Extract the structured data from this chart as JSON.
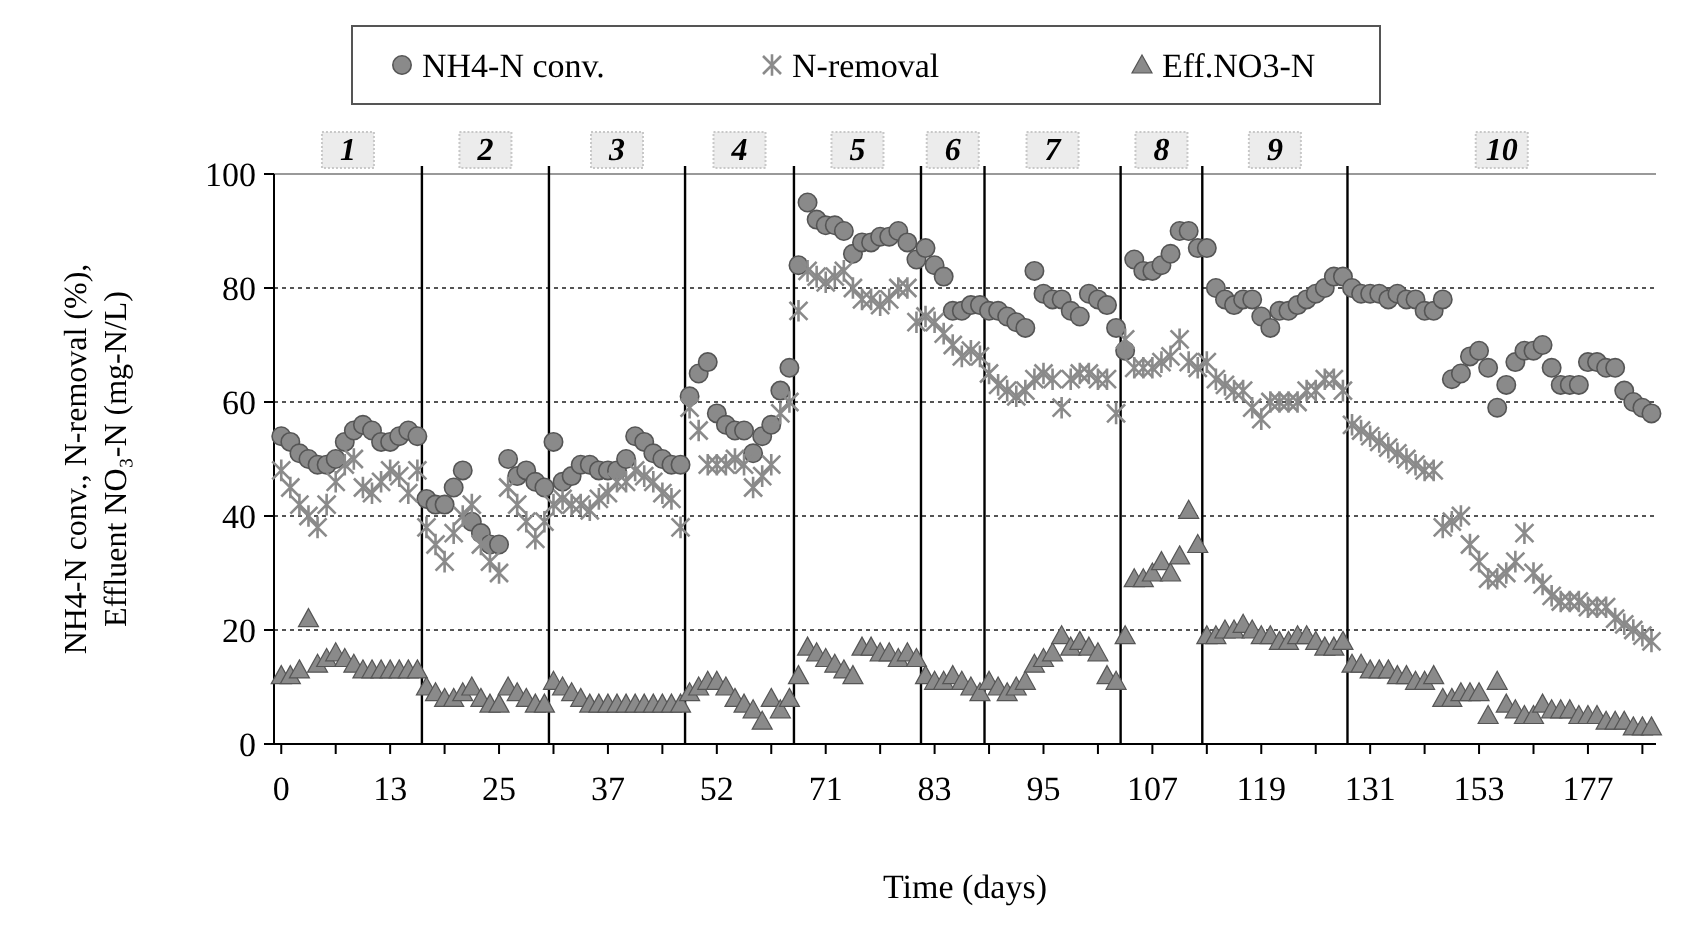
{
  "chart_data": {
    "type": "scatter",
    "xlabel": "Time (days)",
    "ylabel": "NH4-N conv., N-removal (%), Effluent NO₃-N (mg-N/L)",
    "categories": [
      "0",
      null,
      null,
      null,
      null,
      null,
      null,
      null,
      null,
      null,
      null,
      null,
      "13",
      null,
      null,
      null,
      null,
      null,
      null,
      null,
      null,
      null,
      null,
      null,
      "25",
      null,
      null,
      null,
      null,
      null,
      null,
      null,
      null,
      null,
      null,
      null,
      "37",
      null,
      null,
      null,
      null,
      null,
      null,
      null,
      null,
      null,
      null,
      null,
      "52",
      null,
      null,
      null,
      null,
      null,
      null,
      null,
      null,
      null,
      null,
      null,
      "71",
      null,
      null,
      null,
      null,
      null,
      null,
      null,
      null,
      null,
      null,
      null,
      "83",
      null,
      null,
      null,
      null,
      null,
      null,
      null,
      null,
      null,
      null,
      null,
      "95",
      null,
      null,
      null,
      null,
      null,
      null,
      null,
      null,
      null,
      null,
      null,
      "107",
      null,
      null,
      null,
      null,
      null,
      null,
      null,
      null,
      null,
      null,
      null,
      "119",
      null,
      null,
      null,
      null,
      null,
      null,
      null,
      null,
      null,
      null,
      null,
      "131",
      null,
      null,
      null,
      null,
      null,
      null,
      null,
      null,
      null,
      null,
      null,
      "153",
      null,
      null,
      null,
      null,
      null,
      null,
      null,
      null,
      null,
      null,
      null,
      "177",
      null,
      null,
      null,
      null,
      null,
      null,
      null
    ],
    "series": [
      {
        "name": "NH4-N conv.",
        "color": "#8a8a8a",
        "marker": "circle",
        "values": [
          54,
          53,
          51,
          50,
          49,
          49,
          50,
          53,
          55,
          56,
          55,
          53,
          53,
          54,
          55,
          54,
          43,
          42,
          42,
          45,
          48,
          39,
          37,
          35,
          35,
          50,
          47,
          48,
          46,
          45,
          53,
          46,
          47,
          49,
          49,
          48,
          48,
          48,
          50,
          54,
          53,
          51,
          50,
          49,
          49,
          61,
          65,
          67,
          58,
          56,
          55,
          55,
          51,
          54,
          56,
          62,
          66,
          84,
          95,
          92,
          91,
          91,
          90,
          86,
          88,
          88,
          89,
          89,
          90,
          88,
          85,
          87,
          84,
          82,
          76,
          76,
          77,
          77,
          76,
          76,
          75,
          74,
          73,
          83,
          79,
          78,
          78,
          76,
          75,
          79,
          78,
          77,
          73,
          69,
          85,
          83,
          83,
          84,
          86,
          90,
          90,
          87,
          87,
          80,
          78,
          77,
          78,
          78,
          75,
          73,
          76,
          76,
          77,
          78,
          79,
          80,
          82,
          82,
          80,
          79,
          79,
          79,
          78,
          79,
          78,
          78,
          76,
          76,
          78,
          64,
          65,
          68,
          69,
          66,
          59,
          63,
          67,
          69,
          69,
          70,
          66,
          63,
          63,
          63,
          67,
          67,
          66,
          66,
          62,
          60,
          59,
          58
        ]
      },
      {
        "name": "N-removal",
        "color": "#8a8a8a",
        "marker": "cross",
        "values": [
          48,
          45,
          42,
          40,
          38,
          42,
          46,
          49,
          50,
          45,
          44,
          46,
          48,
          47,
          44,
          48,
          38,
          35,
          32,
          37,
          40,
          42,
          35,
          32,
          30,
          45,
          42,
          39,
          36,
          39,
          42,
          43,
          42,
          42,
          41,
          43,
          44,
          46,
          46,
          48,
          47,
          46,
          44,
          43,
          38,
          59,
          55,
          49,
          49,
          49,
          50,
          49,
          45,
          47,
          49,
          58,
          60,
          76,
          83,
          82,
          81,
          82,
          83,
          80,
          78,
          78,
          77,
          78,
          80,
          80,
          74,
          75,
          74,
          72,
          70,
          68,
          69,
          68,
          65,
          63,
          62,
          61,
          62,
          64,
          65,
          64,
          59,
          64,
          65,
          65,
          64,
          64,
          58,
          71,
          66,
          66,
          66,
          67,
          68,
          71,
          67,
          66,
          67,
          64,
          63,
          62,
          62,
          59,
          57,
          60,
          60,
          60,
          60,
          62,
          62,
          64,
          64,
          62,
          56,
          55,
          54,
          53,
          52,
          51,
          50,
          49,
          48,
          48,
          38,
          39,
          40,
          35,
          32,
          29,
          29,
          30,
          32,
          37,
          30,
          28,
          26,
          25,
          25,
          25,
          24,
          24,
          24,
          22,
          21,
          20,
          19,
          18
        ]
      },
      {
        "name": "Eff.NO3-N",
        "color": "#8a8a8a",
        "marker": "triangle",
        "values": [
          12,
          12,
          13,
          22,
          14,
          15,
          16,
          15,
          14,
          13,
          13,
          13,
          13,
          13,
          13,
          13,
          10,
          9,
          8,
          8,
          9,
          10,
          8,
          7,
          7,
          10,
          9,
          8,
          7,
          7,
          11,
          10,
          9,
          8,
          7,
          7,
          7,
          7,
          7,
          7,
          7,
          7,
          7,
          7,
          7,
          9,
          10,
          11,
          11,
          10,
          8,
          7,
          6,
          4,
          8,
          6,
          8,
          12,
          17,
          16,
          15,
          14,
          13,
          12,
          17,
          17,
          16,
          16,
          15,
          16,
          15,
          12,
          11,
          11,
          12,
          11,
          10,
          9,
          11,
          10,
          9,
          10,
          11,
          14,
          15,
          16,
          19,
          17,
          18,
          17,
          16,
          12,
          11,
          19,
          29,
          29,
          30,
          32,
          30,
          33,
          41,
          35,
          19,
          19,
          20,
          20,
          21,
          20,
          19,
          19,
          18,
          18,
          19,
          19,
          18,
          17,
          17,
          18,
          14,
          14,
          13,
          13,
          13,
          12,
          12,
          11,
          11,
          12,
          8,
          8,
          9,
          9,
          9,
          5,
          11,
          7,
          6,
          5,
          5,
          7,
          6,
          6,
          6,
          5,
          5,
          5,
          4,
          4,
          4,
          3,
          3,
          3
        ]
      }
    ],
    "ylim": [
      0,
      100
    ],
    "yticks": [
      0,
      20,
      40,
      60,
      80,
      100
    ],
    "grid": "y",
    "legend": "top",
    "annotations": [
      "1",
      "2",
      "3",
      "4",
      "5",
      "6",
      "7",
      "8",
      "9",
      "10"
    ]
  }
}
